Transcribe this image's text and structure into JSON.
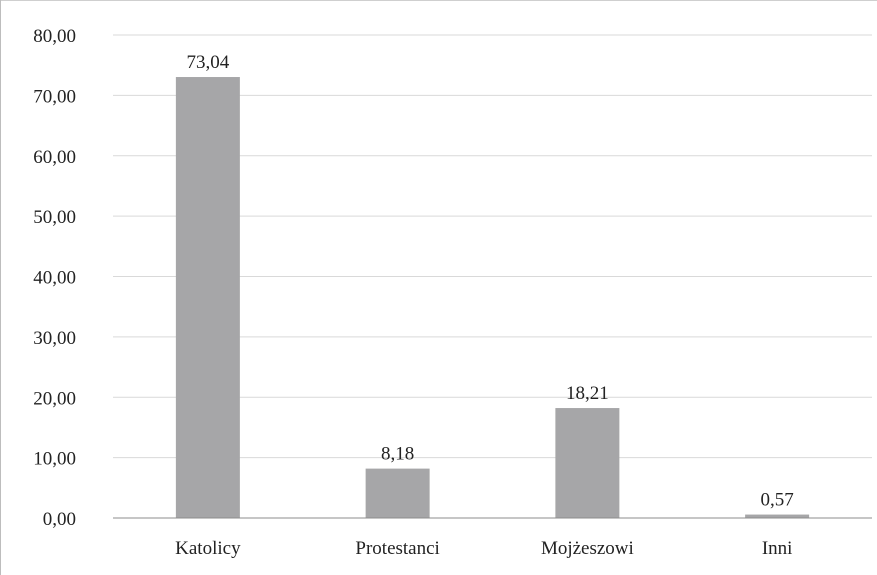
{
  "chart_data": {
    "type": "bar",
    "categories": [
      "Katolicy",
      "Protestanci",
      "Mojżeszowi",
      "Inni"
    ],
    "values": [
      73.04,
      8.18,
      18.21,
      0.57
    ],
    "data_labels": [
      "73,04",
      "8,18",
      "18,21",
      "0,57"
    ],
    "y_ticks": [
      0,
      10,
      20,
      30,
      40,
      50,
      60,
      70,
      80
    ],
    "y_tick_labels": [
      "0,00",
      "10,00",
      "20,00",
      "30,00",
      "40,00",
      "50,00",
      "60,00",
      "70,00",
      "80,00"
    ],
    "ylim": [
      0,
      80
    ],
    "title": "",
    "xlabel": "",
    "ylabel": "",
    "grid": true,
    "legend": "none",
    "colors": {
      "bar": "#a6a6a8",
      "grid": "#d9d9d9",
      "axis": "#8c8c8c",
      "text": "#222222"
    }
  }
}
